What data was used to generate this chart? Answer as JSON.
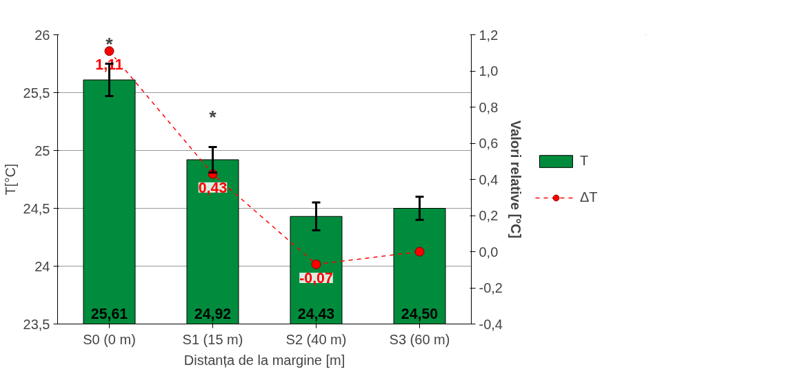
{
  "chart_data": {
    "type": "bar",
    "xlabel": "Distanța de la margine [m]",
    "ylabel": "T[°C]",
    "y2label": "Valori relative [°C]",
    "categories": [
      "S0 (0 m)",
      "S1 (15 m)",
      "S2 (40 m)",
      "S3 (60 m)"
    ],
    "series": [
      {
        "name": "T",
        "color": "#008c3c",
        "values": [
          25.61,
          24.92,
          24.43,
          24.5
        ],
        "errors": [
          0.14,
          0.11,
          0.12,
          0.1
        ],
        "value_labels": [
          "25,61",
          "24,92",
          "24,43",
          "24,50"
        ]
      },
      {
        "name": "ΔT",
        "type": "line",
        "axis": "y2",
        "color": "#ff0000",
        "values": [
          1.11,
          0.43,
          -0.07,
          0.0
        ],
        "value_labels": [
          "1,11",
          "0,43",
          "-0,07",
          null
        ],
        "marker": "circle",
        "line_style": "dashed"
      }
    ],
    "ylim": [
      23.5,
      26
    ],
    "yticks": [
      {
        "value": 23.5,
        "label": "23,5"
      },
      24,
      {
        "value": 24.5,
        "label": "24,5"
      },
      25,
      {
        "value": 25.5,
        "label": "25,5"
      },
      26
    ],
    "y2lim": [
      -0.4,
      1.2
    ],
    "y2ticks": [
      {
        "value": -0.4,
        "label": "-0,4"
      },
      {
        "value": -0.2,
        "label": "-0,2"
      },
      {
        "value": 0,
        "label": "0,0"
      },
      {
        "value": 0.2,
        "label": "0,2"
      },
      {
        "value": 0.4,
        "label": "0,4"
      },
      {
        "value": 0.6,
        "label": "0,6"
      },
      {
        "value": 0.8,
        "label": "0,8"
      },
      {
        "value": 1.0,
        "label": "1,0"
      },
      {
        "value": 1.2,
        "label": "1,2"
      }
    ],
    "annotations": [
      "*",
      "*"
    ],
    "grid": "y",
    "legend": "right"
  }
}
